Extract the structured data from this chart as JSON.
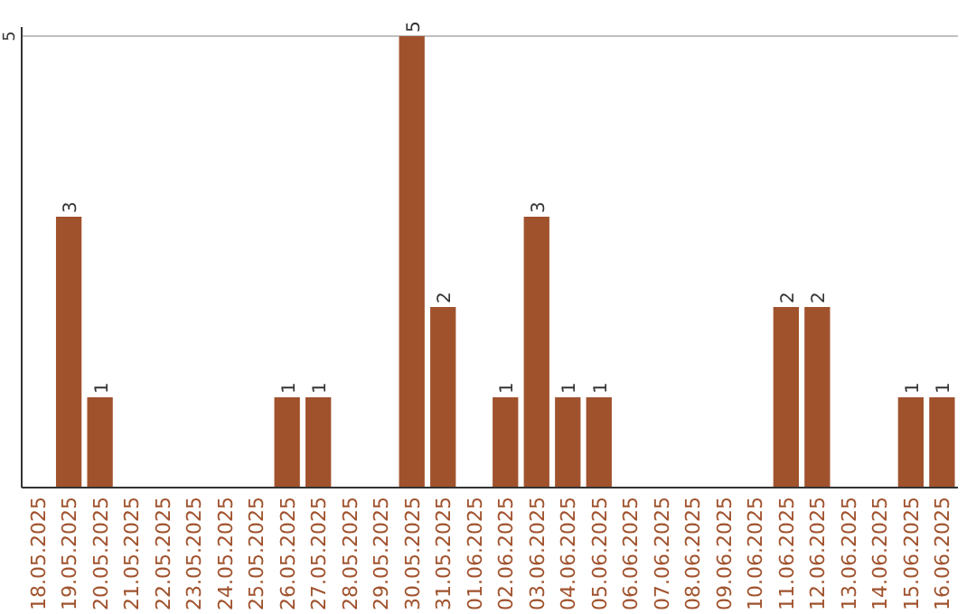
{
  "chart_data": {
    "type": "bar",
    "categories": [
      "18.05.2025",
      "19.05.2025",
      "20.05.2025",
      "21.05.2025",
      "22.05.2025",
      "23.05.2025",
      "24.05.2025",
      "25.05.2025",
      "26.05.2025",
      "27.05.2025",
      "28.05.2025",
      "29.05.2025",
      "30.05.2025",
      "31.05.2025",
      "01.06.2025",
      "02.06.2025",
      "03.06.2025",
      "04.06.2025",
      "05.06.2025",
      "06.06.2025",
      "07.06.2025",
      "08.06.2025",
      "09.06.2025",
      "10.06.2025",
      "11.06.2025",
      "12.06.2025",
      "13.06.2025",
      "14.06.2025",
      "15.06.2025",
      "16.06.2025"
    ],
    "values": [
      null,
      3,
      1,
      null,
      null,
      null,
      null,
      null,
      1,
      1,
      null,
      null,
      5,
      2,
      null,
      1,
      3,
      1,
      1,
      null,
      null,
      null,
      null,
      null,
      2,
      2,
      null,
      null,
      1,
      1
    ],
    "color": "#a0522d",
    "ylim": [
      0,
      5
    ],
    "yticks": [
      5
    ],
    "ref_lines": [
      {
        "axis": "y",
        "value": 5,
        "color": "#c0c0c0"
      }
    ],
    "data_labels": true
  }
}
